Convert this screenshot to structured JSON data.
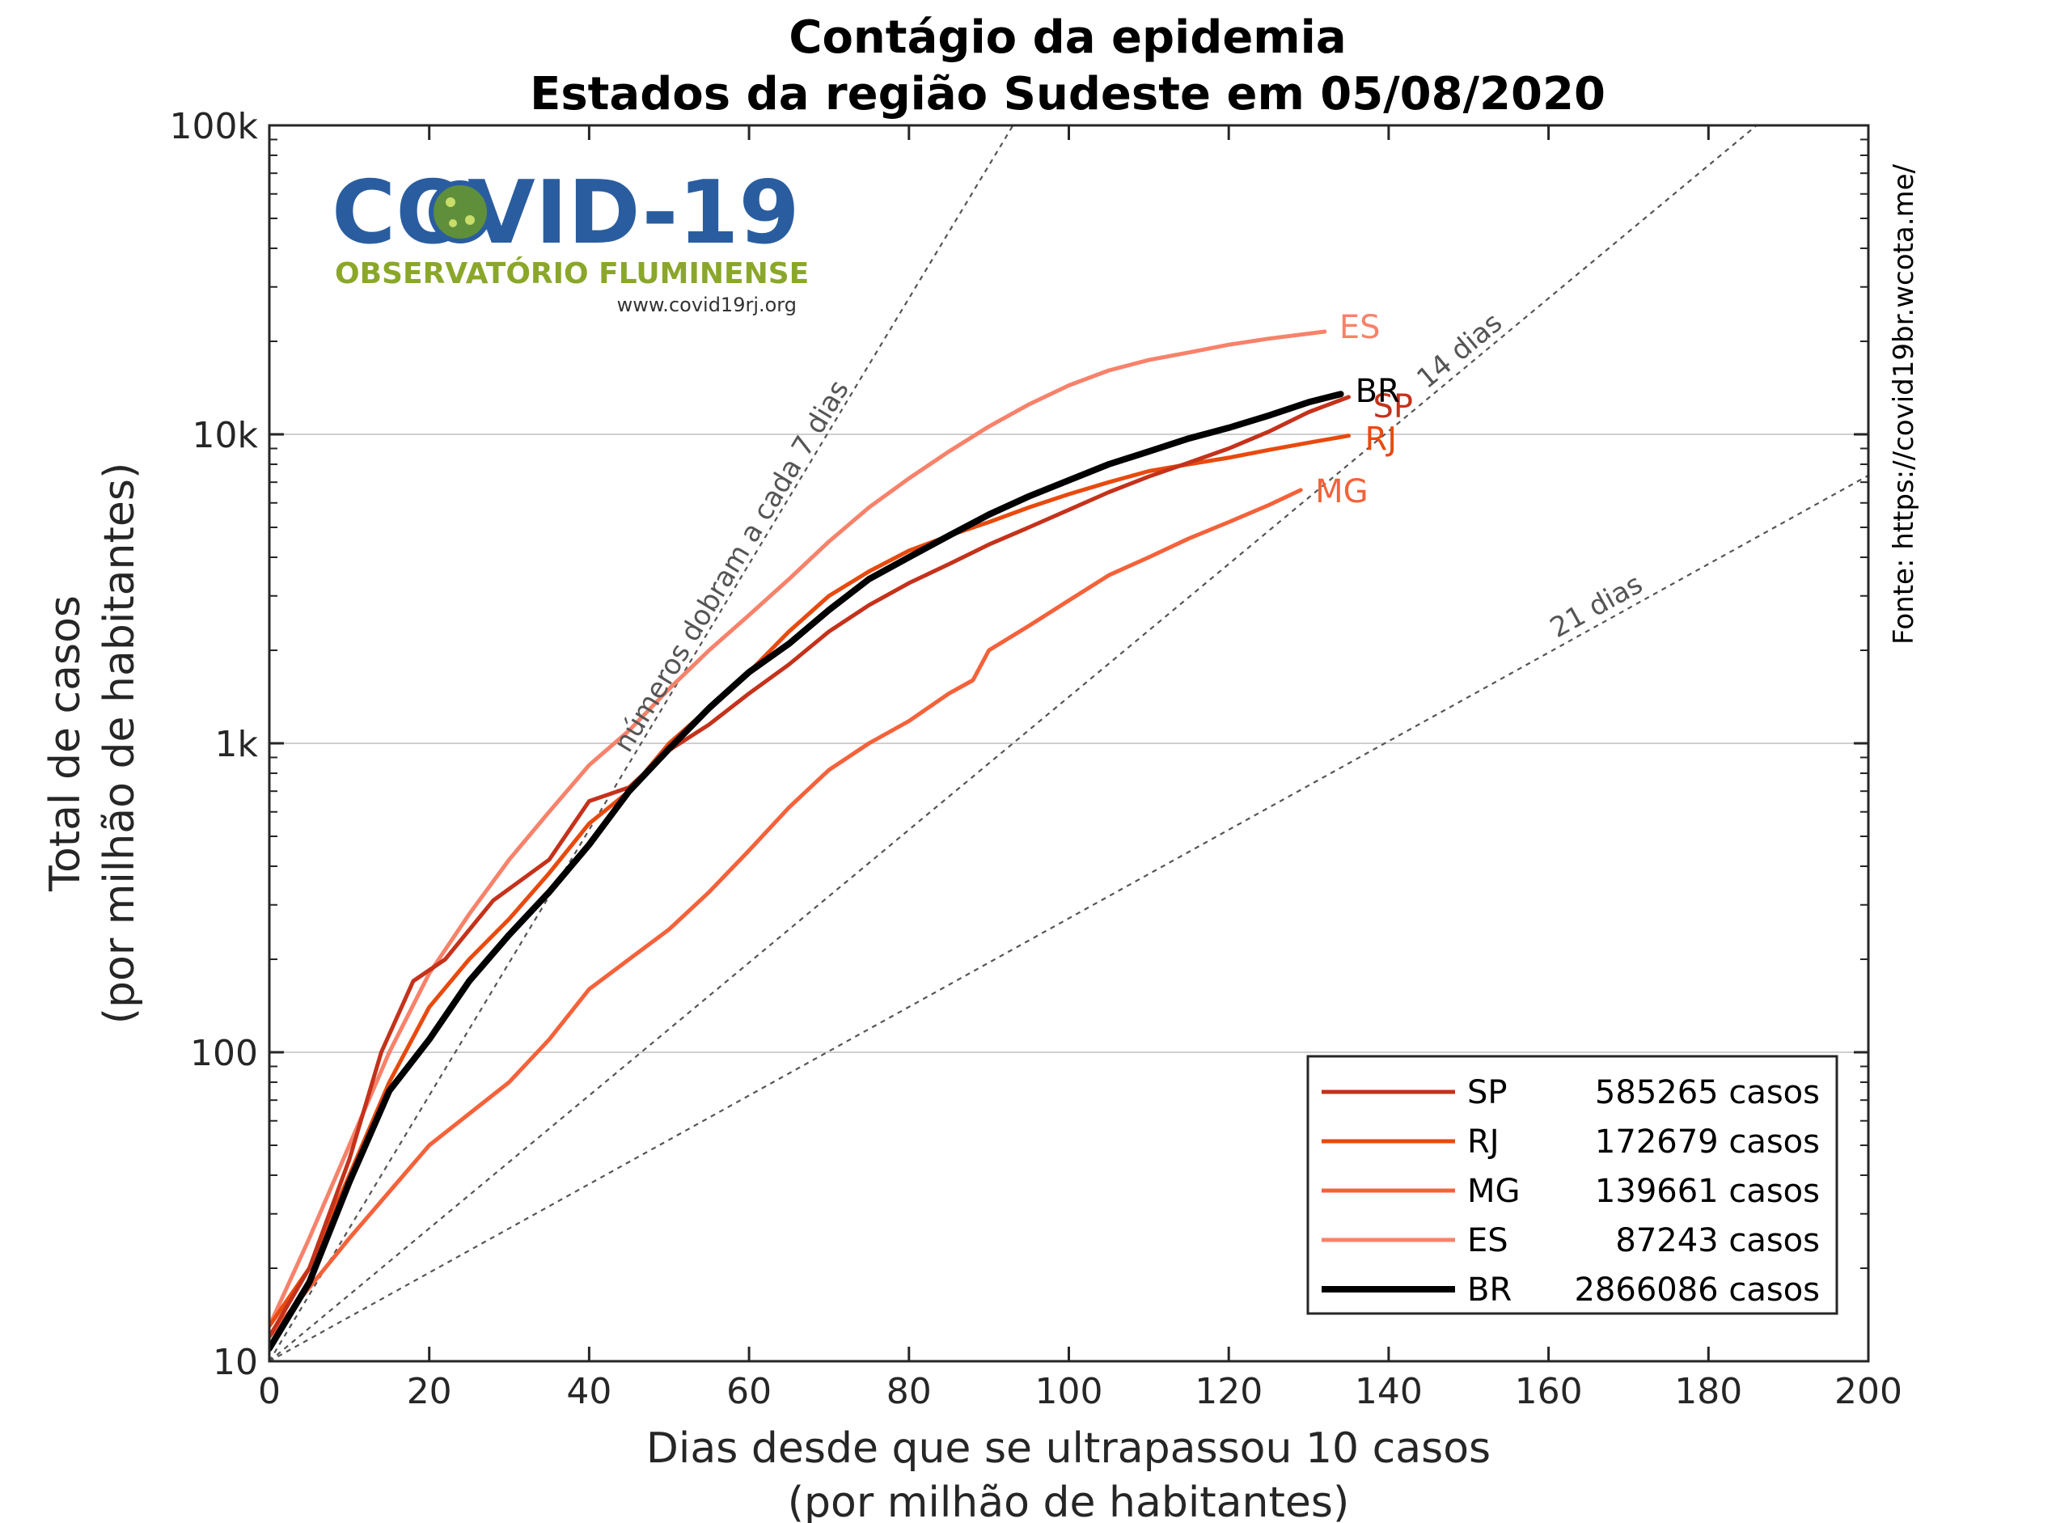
{
  "chart_data": {
    "type": "line",
    "title": "Contágio da epidemia",
    "subtitle": "Estados da região Sudeste em 05/08/2020",
    "xlabel": "Dias desde que se ultrapassou 10 casos",
    "xlabel2": "(por milhão de habitantes)",
    "ylabel": "Total de casos",
    "ylabel2": "(por milhão de habitantes)",
    "xlim": [
      0,
      200
    ],
    "ylim": [
      10,
      100000
    ],
    "yscale": "log",
    "xticks": [
      0,
      20,
      40,
      60,
      80,
      100,
      120,
      140,
      160,
      180,
      200
    ],
    "xtick_labels": [
      "0",
      "20",
      "40",
      "60",
      "80",
      "100",
      "120",
      "140",
      "160",
      "180",
      "200"
    ],
    "yticks": [
      10,
      100,
      1000,
      10000,
      100000
    ],
    "ytick_labels": [
      "10",
      "100",
      "1k",
      "10k",
      "100k"
    ],
    "grid": "horizontal-major",
    "legend_position": "bottom-right",
    "source": "Fonte: https://covid19br.wcota.me/",
    "reference_lines": [
      {
        "label": "números dobram a cada 7 dias",
        "doubling_days": 7
      },
      {
        "label": "14 dias",
        "doubling_days": 14
      },
      {
        "label": "21 dias",
        "doubling_days": 21
      }
    ],
    "series": [
      {
        "name": "SP",
        "cases_label": "585265 casos",
        "color": "#c4321b",
        "end_label": "SP",
        "x": [
          0,
          5,
          10,
          14,
          18,
          22,
          28,
          35,
          40,
          45,
          50,
          55,
          60,
          65,
          70,
          75,
          80,
          85,
          90,
          95,
          100,
          105,
          110,
          115,
          120,
          125,
          130,
          135
        ],
        "y": [
          12,
          20,
          45,
          100,
          170,
          200,
          310,
          420,
          650,
          720,
          950,
          1150,
          1450,
          1800,
          2300,
          2800,
          3300,
          3800,
          4400,
          5000,
          5700,
          6500,
          7300,
          8100,
          9000,
          10200,
          11800,
          13200
        ]
      },
      {
        "name": "RJ",
        "cases_label": "172679 casos",
        "color": "#e84a0e",
        "end_label": "RJ",
        "x": [
          0,
          5,
          10,
          15,
          20,
          25,
          30,
          35,
          40,
          45,
          50,
          55,
          60,
          65,
          70,
          75,
          80,
          85,
          90,
          95,
          100,
          105,
          110,
          115,
          120,
          125,
          130,
          135
        ],
        "y": [
          13,
          20,
          40,
          80,
          140,
          200,
          270,
          380,
          550,
          700,
          1000,
          1300,
          1700,
          2300,
          3000,
          3600,
          4200,
          4700,
          5200,
          5800,
          6400,
          7000,
          7600,
          8000,
          8400,
          8900,
          9400,
          9900
        ]
      },
      {
        "name": "MG",
        "cases_label": "139661 casos",
        "color": "#f4623a",
        "end_label": "MG",
        "x": [
          0,
          10,
          20,
          30,
          35,
          40,
          45,
          50,
          55,
          60,
          65,
          70,
          75,
          80,
          85,
          88,
          90,
          95,
          100,
          105,
          110,
          115,
          120,
          125,
          129
        ],
        "y": [
          12,
          25,
          50,
          80,
          110,
          160,
          200,
          250,
          330,
          450,
          620,
          820,
          1000,
          1180,
          1450,
          1600,
          2000,
          2400,
          2900,
          3500,
          4000,
          4600,
          5200,
          5900,
          6600
        ]
      },
      {
        "name": "ES",
        "cases_label": "87243 casos",
        "color": "#f7826a",
        "end_label": "ES",
        "x": [
          0,
          5,
          10,
          15,
          20,
          25,
          30,
          35,
          40,
          45,
          50,
          55,
          60,
          65,
          70,
          75,
          80,
          85,
          90,
          95,
          100,
          105,
          110,
          115,
          120,
          125,
          132
        ],
        "y": [
          13,
          25,
          50,
          100,
          180,
          280,
          420,
          600,
          850,
          1100,
          1500,
          2000,
          2600,
          3400,
          4500,
          5800,
          7200,
          8800,
          10600,
          12500,
          14400,
          16100,
          17400,
          18400,
          19500,
          20400,
          21500
        ]
      },
      {
        "name": "BR",
        "cases_label": "2866086 casos",
        "color": "#000000",
        "end_label": "BR",
        "x": [
          0,
          5,
          10,
          15,
          20,
          25,
          30,
          35,
          40,
          45,
          50,
          55,
          60,
          65,
          70,
          75,
          80,
          85,
          90,
          95,
          100,
          105,
          110,
          115,
          120,
          125,
          130,
          134
        ],
        "y": [
          11,
          18,
          38,
          75,
          110,
          170,
          240,
          330,
          470,
          700,
          960,
          1300,
          1700,
          2100,
          2700,
          3400,
          4000,
          4700,
          5500,
          6300,
          7100,
          8000,
          8800,
          9700,
          10500,
          11500,
          12700,
          13500
        ]
      }
    ]
  },
  "logo": {
    "title": "COVID-19",
    "subtitle": "OBSERVATÓRIO FLUMINENSE",
    "url": "www.covid19rj.org"
  }
}
